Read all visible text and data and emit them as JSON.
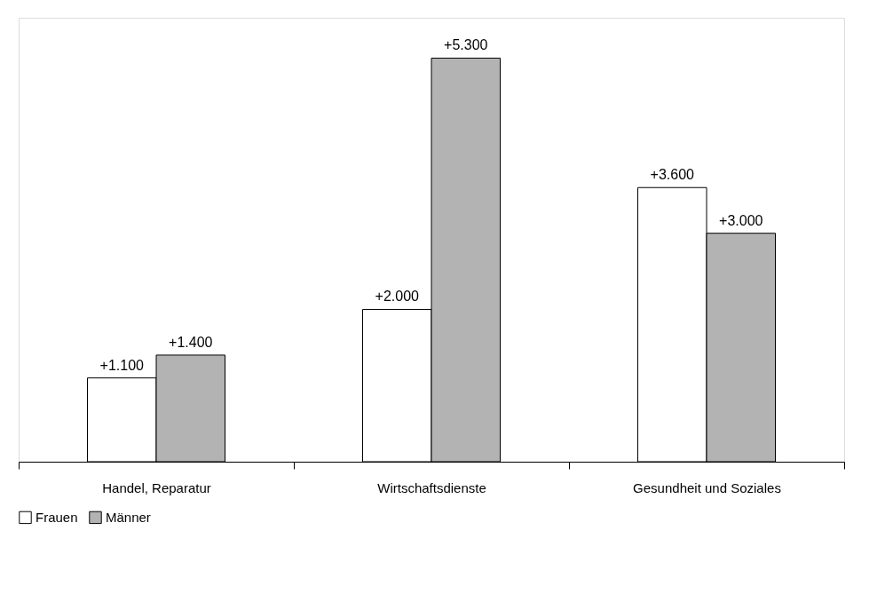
{
  "chart_data": {
    "type": "bar",
    "categories": [
      "Handel, Reparatur",
      "Wirtschaftsdienste",
      "Gesundheit und Soziales"
    ],
    "series": [
      {
        "name": "Frauen",
        "color": "#ffffff",
        "values": [
          1100,
          2000,
          3600
        ],
        "value_labels": [
          "+1.100",
          "+2.000",
          "+3.600"
        ]
      },
      {
        "name": "Männer",
        "color": "#b3b3b3",
        "values": [
          1400,
          5300,
          3000
        ],
        "value_labels": [
          "+1.400",
          "+5.300",
          "+3.000"
        ]
      }
    ],
    "legend": "bottom",
    "grid": false
  }
}
